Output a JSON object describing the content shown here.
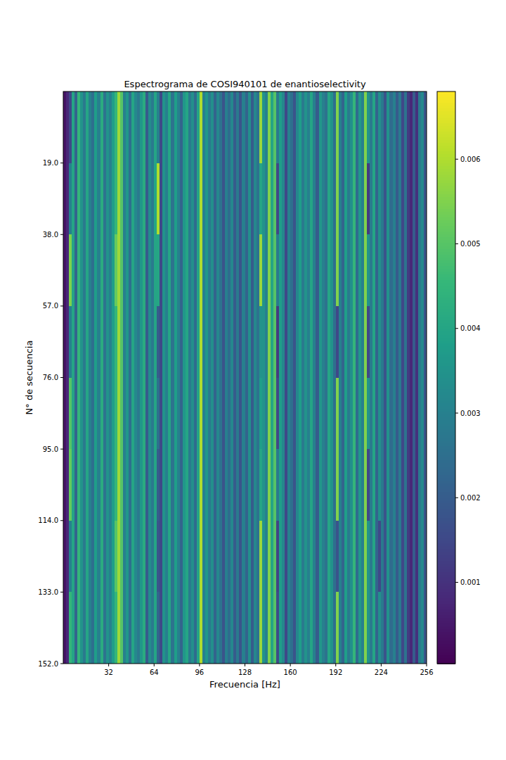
{
  "chart_data": {
    "type": "heatmap",
    "title": "Espectrograma de COSI940101 de enantioselectivity",
    "x_label": "Frecuencia [Hz]",
    "y_label": "N° de secuencia",
    "xlim": [
      0,
      256
    ],
    "ylim": [
      0,
      152
    ],
    "xticks": [
      32,
      64,
      96,
      128,
      160,
      192,
      224,
      256
    ],
    "yticks": [
      {
        "value": 19,
        "label": "19.0"
      },
      {
        "value": 38,
        "label": "38.0"
      },
      {
        "value": 57,
        "label": "57.0"
      },
      {
        "value": 76,
        "label": "76.0"
      },
      {
        "value": 95,
        "label": "95.0"
      },
      {
        "value": 114,
        "label": "114.0"
      },
      {
        "value": 133,
        "label": "133.0"
      },
      {
        "value": 152,
        "label": "152.0"
      }
    ],
    "colorbar": {
      "range": [
        4e-05,
        0.0068
      ],
      "ticks": [
        0.001,
        0.002,
        0.003,
        0.004,
        0.005,
        0.006
      ]
    },
    "cells": [
      [
        0.0004,
        0.0008,
        0.0015,
        0.004,
        0.0022,
        0.0045,
        0.0035,
        0.0028,
        0.004,
        0.003,
        0.0025,
        0.0038,
        0.003,
        0.0042,
        0.0026,
        0.0035,
        0.003,
        0.0038,
        0.0045,
        0.0058,
        0.005,
        0.003,
        0.0036,
        0.0025,
        0.004,
        0.0032,
        0.0028,
        0.0036,
        0.0042,
        0.002,
        0.0033,
        0.0028,
        0.004,
        0.003,
        0.0015,
        0.0035,
        0.003,
        0.004,
        0.0026,
        0.0038,
        0.003,
        0.0022,
        0.0036,
        0.004,
        0.0028,
        0.0034,
        0.0024,
        0.004,
        0.006,
        0.003,
        0.0036,
        0.0028,
        0.0034,
        0.0022,
        0.0032,
        0.0026,
        0.0018,
        0.003,
        0.0024,
        0.0032,
        0.002,
        0.0028,
        0.0018,
        0.003,
        0.0022,
        0.0034,
        0.002,
        0.0032,
        0.0026,
        0.0058,
        0.0035,
        0.003,
        0.0055,
        0.004,
        0.005,
        0.0028,
        0.0038,
        0.0032,
        0.0015,
        0.003,
        0.0025,
        0.0018,
        0.0032,
        0.0038,
        0.0028,
        0.0035,
        0.003,
        0.004,
        0.003,
        0.002,
        0.0036,
        0.003,
        0.0026,
        0.004,
        0.0035,
        0.0025,
        0.0055,
        0.003,
        0.0022,
        0.0038,
        0.0028,
        0.0034,
        0.0045,
        0.0024,
        0.0036,
        0.003,
        0.0055,
        0.0035,
        0.0028,
        0.004,
        0.0022,
        0.0034,
        0.0028,
        0.0018,
        0.0035,
        0.0024,
        0.003,
        0.002,
        0.0028,
        0.0015,
        0.0026,
        0.0012,
        0.0008,
        0.002,
        0.001,
        0.0028,
        0.0032,
        0.0018
      ],
      [
        0.0004,
        0.0008,
        0.003,
        0.004,
        0.0022,
        0.0045,
        0.0035,
        0.0028,
        0.004,
        0.003,
        0.0025,
        0.0038,
        0.003,
        0.0042,
        0.0026,
        0.0035,
        0.003,
        0.0038,
        0.0045,
        0.0058,
        0.005,
        0.003,
        0.0036,
        0.0025,
        0.004,
        0.0032,
        0.0028,
        0.0036,
        0.0042,
        0.002,
        0.0033,
        0.0028,
        0.004,
        0.006,
        0.0015,
        0.0035,
        0.003,
        0.004,
        0.0026,
        0.0038,
        0.003,
        0.0022,
        0.0036,
        0.004,
        0.0028,
        0.0034,
        0.0024,
        0.004,
        0.006,
        0.003,
        0.0036,
        0.0028,
        0.0034,
        0.0022,
        0.0032,
        0.0026,
        0.0018,
        0.003,
        0.0024,
        0.0032,
        0.002,
        0.0028,
        0.0018,
        0.003,
        0.0022,
        0.0034,
        0.002,
        0.0032,
        0.0026,
        0.004,
        0.0035,
        0.003,
        0.0055,
        0.004,
        0.005,
        0.0015,
        0.0038,
        0.0032,
        0.0015,
        0.003,
        0.0025,
        0.0018,
        0.0032,
        0.0038,
        0.0028,
        0.0035,
        0.003,
        0.004,
        0.003,
        0.002,
        0.0036,
        0.003,
        0.0026,
        0.004,
        0.0035,
        0.0025,
        0.0055,
        0.003,
        0.0022,
        0.0038,
        0.0028,
        0.0034,
        0.0045,
        0.0024,
        0.0036,
        0.003,
        0.0055,
        0.0012,
        0.0028,
        0.004,
        0.0022,
        0.0034,
        0.0028,
        0.0018,
        0.0035,
        0.0024,
        0.003,
        0.002,
        0.0028,
        0.0015,
        0.0026,
        0.0012,
        0.0008,
        0.002,
        0.001,
        0.0028,
        0.0032,
        0.0018
      ],
      [
        0.0004,
        0.0008,
        0.0055,
        0.004,
        0.0022,
        0.0045,
        0.0035,
        0.0028,
        0.004,
        0.003,
        0.0025,
        0.0038,
        0.003,
        0.0042,
        0.0026,
        0.0035,
        0.003,
        0.0038,
        0.0052,
        0.0058,
        0.005,
        0.003,
        0.0036,
        0.0025,
        0.004,
        0.0032,
        0.0028,
        0.0036,
        0.0042,
        0.002,
        0.0033,
        0.0028,
        0.004,
        0.004,
        0.0015,
        0.0035,
        0.003,
        0.004,
        0.0026,
        0.0038,
        0.003,
        0.0022,
        0.0036,
        0.004,
        0.0028,
        0.0034,
        0.0024,
        0.004,
        0.006,
        0.003,
        0.0036,
        0.0028,
        0.0034,
        0.0022,
        0.0032,
        0.0026,
        0.0018,
        0.003,
        0.0024,
        0.0032,
        0.002,
        0.0028,
        0.0018,
        0.003,
        0.0022,
        0.0034,
        0.002,
        0.0032,
        0.0026,
        0.0058,
        0.0035,
        0.003,
        0.0055,
        0.004,
        0.005,
        0.0028,
        0.0038,
        0.0032,
        0.0015,
        0.003,
        0.0025,
        0.0018,
        0.0032,
        0.0038,
        0.0028,
        0.0035,
        0.003,
        0.004,
        0.003,
        0.002,
        0.0036,
        0.003,
        0.0026,
        0.004,
        0.0035,
        0.0025,
        0.0055,
        0.003,
        0.0022,
        0.0038,
        0.0028,
        0.0034,
        0.0045,
        0.0024,
        0.0036,
        0.003,
        0.0055,
        0.0035,
        0.0028,
        0.004,
        0.0022,
        0.0034,
        0.0028,
        0.0018,
        0.0035,
        0.0024,
        0.003,
        0.002,
        0.0028,
        0.0015,
        0.0026,
        0.0012,
        0.0008,
        0.002,
        0.001,
        0.0028,
        0.0032,
        0.0018
      ],
      [
        0.0004,
        0.0008,
        0.003,
        0.004,
        0.0022,
        0.0045,
        0.0035,
        0.0028,
        0.004,
        0.003,
        0.0025,
        0.0038,
        0.003,
        0.0042,
        0.0026,
        0.0035,
        0.003,
        0.0038,
        0.0045,
        0.0058,
        0.005,
        0.003,
        0.0036,
        0.0025,
        0.004,
        0.0032,
        0.0028,
        0.0036,
        0.0042,
        0.002,
        0.0033,
        0.0028,
        0.004,
        0.002,
        0.0015,
        0.0035,
        0.003,
        0.004,
        0.0026,
        0.0038,
        0.003,
        0.0022,
        0.0036,
        0.004,
        0.0028,
        0.0034,
        0.0024,
        0.004,
        0.006,
        0.003,
        0.0036,
        0.0028,
        0.0034,
        0.0022,
        0.0032,
        0.0026,
        0.0018,
        0.003,
        0.0024,
        0.0032,
        0.002,
        0.0028,
        0.0018,
        0.003,
        0.0022,
        0.0034,
        0.002,
        0.0032,
        0.0026,
        0.0035,
        0.0035,
        0.003,
        0.0055,
        0.004,
        0.005,
        0.0012,
        0.0038,
        0.0032,
        0.0015,
        0.003,
        0.0025,
        0.0018,
        0.0032,
        0.0038,
        0.0028,
        0.0035,
        0.003,
        0.004,
        0.003,
        0.002,
        0.0036,
        0.003,
        0.0026,
        0.004,
        0.0035,
        0.0025,
        0.0015,
        0.003,
        0.0022,
        0.0038,
        0.0028,
        0.0034,
        0.0045,
        0.0024,
        0.0036,
        0.003,
        0.0055,
        0.0015,
        0.0028,
        0.004,
        0.0022,
        0.0034,
        0.0028,
        0.0018,
        0.0035,
        0.0024,
        0.003,
        0.002,
        0.0028,
        0.0015,
        0.0026,
        0.0012,
        0.0008,
        0.002,
        0.001,
        0.0028,
        0.0032,
        0.0018
      ],
      [
        0.0004,
        0.0008,
        0.005,
        0.004,
        0.0022,
        0.0045,
        0.0035,
        0.0028,
        0.004,
        0.003,
        0.0025,
        0.0038,
        0.003,
        0.0042,
        0.0026,
        0.0035,
        0.003,
        0.0038,
        0.0045,
        0.0058,
        0.005,
        0.003,
        0.0036,
        0.0025,
        0.004,
        0.0032,
        0.0028,
        0.0036,
        0.0042,
        0.002,
        0.0033,
        0.0028,
        0.004,
        0.0025,
        0.0015,
        0.0035,
        0.003,
        0.004,
        0.0026,
        0.0038,
        0.003,
        0.0022,
        0.0036,
        0.004,
        0.0028,
        0.0034,
        0.0024,
        0.004,
        0.006,
        0.003,
        0.0036,
        0.0028,
        0.0034,
        0.0022,
        0.0032,
        0.0026,
        0.0018,
        0.003,
        0.0024,
        0.0032,
        0.002,
        0.0028,
        0.0018,
        0.003,
        0.0022,
        0.0034,
        0.002,
        0.0032,
        0.0026,
        0.0038,
        0.0035,
        0.003,
        0.0055,
        0.004,
        0.005,
        0.0015,
        0.0038,
        0.0032,
        0.0015,
        0.003,
        0.0025,
        0.0018,
        0.0032,
        0.0038,
        0.0028,
        0.0035,
        0.003,
        0.004,
        0.003,
        0.002,
        0.0036,
        0.003,
        0.0026,
        0.004,
        0.0035,
        0.0025,
        0.0055,
        0.003,
        0.0022,
        0.0038,
        0.0028,
        0.0034,
        0.0045,
        0.0024,
        0.0036,
        0.003,
        0.0055,
        0.0035,
        0.0028,
        0.004,
        0.0022,
        0.0034,
        0.0028,
        0.0018,
        0.0035,
        0.0024,
        0.003,
        0.002,
        0.0028,
        0.0015,
        0.0026,
        0.0012,
        0.0008,
        0.002,
        0.001,
        0.0028,
        0.0032,
        0.0018
      ],
      [
        0.0004,
        0.0008,
        0.0052,
        0.004,
        0.0022,
        0.0045,
        0.0035,
        0.0028,
        0.004,
        0.003,
        0.0025,
        0.0038,
        0.003,
        0.0042,
        0.0026,
        0.0035,
        0.003,
        0.0038,
        0.0045,
        0.0058,
        0.005,
        0.003,
        0.0036,
        0.0025,
        0.004,
        0.0032,
        0.0028,
        0.0036,
        0.0042,
        0.002,
        0.0033,
        0.0028,
        0.004,
        0.002,
        0.0015,
        0.0035,
        0.003,
        0.004,
        0.0026,
        0.0038,
        0.003,
        0.0022,
        0.0036,
        0.004,
        0.0028,
        0.0034,
        0.0024,
        0.004,
        0.006,
        0.003,
        0.0036,
        0.0028,
        0.0034,
        0.0022,
        0.0032,
        0.0026,
        0.0018,
        0.003,
        0.0024,
        0.0032,
        0.002,
        0.0028,
        0.0018,
        0.003,
        0.0022,
        0.0034,
        0.002,
        0.0032,
        0.0026,
        0.004,
        0.0035,
        0.003,
        0.0055,
        0.004,
        0.005,
        0.0028,
        0.0038,
        0.0032,
        0.0015,
        0.003,
        0.0025,
        0.0018,
        0.0032,
        0.0038,
        0.0028,
        0.0035,
        0.003,
        0.004,
        0.003,
        0.002,
        0.0036,
        0.003,
        0.0026,
        0.004,
        0.0035,
        0.0025,
        0.0055,
        0.003,
        0.0022,
        0.0038,
        0.0028,
        0.0034,
        0.0045,
        0.0024,
        0.0036,
        0.003,
        0.0055,
        0.0015,
        0.0028,
        0.004,
        0.0022,
        0.0034,
        0.0028,
        0.0018,
        0.0035,
        0.0024,
        0.003,
        0.002,
        0.0028,
        0.0015,
        0.0026,
        0.0012,
        0.0008,
        0.002,
        0.001,
        0.0028,
        0.0032,
        0.0018
      ],
      [
        0.0004,
        0.0008,
        0.003,
        0.004,
        0.0022,
        0.0045,
        0.0035,
        0.0028,
        0.004,
        0.003,
        0.0025,
        0.0038,
        0.003,
        0.0042,
        0.0026,
        0.0035,
        0.003,
        0.0038,
        0.005,
        0.0058,
        0.005,
        0.003,
        0.0036,
        0.0025,
        0.004,
        0.0032,
        0.0028,
        0.0036,
        0.0042,
        0.002,
        0.0033,
        0.0028,
        0.004,
        0.0018,
        0.0015,
        0.0035,
        0.003,
        0.004,
        0.0026,
        0.0038,
        0.003,
        0.0022,
        0.0036,
        0.004,
        0.0028,
        0.0034,
        0.0024,
        0.004,
        0.006,
        0.003,
        0.0036,
        0.0028,
        0.0034,
        0.0022,
        0.0032,
        0.0026,
        0.0018,
        0.003,
        0.0024,
        0.0032,
        0.002,
        0.0028,
        0.0018,
        0.003,
        0.0022,
        0.0034,
        0.002,
        0.0032,
        0.0026,
        0.0058,
        0.0035,
        0.003,
        0.0055,
        0.004,
        0.005,
        0.0014,
        0.0038,
        0.0032,
        0.0015,
        0.003,
        0.0025,
        0.0018,
        0.0032,
        0.0038,
        0.0028,
        0.0035,
        0.003,
        0.004,
        0.003,
        0.002,
        0.0036,
        0.003,
        0.0026,
        0.004,
        0.0035,
        0.0025,
        0.0018,
        0.003,
        0.0022,
        0.0038,
        0.0028,
        0.0034,
        0.0045,
        0.0024,
        0.0036,
        0.003,
        0.0055,
        0.0035,
        0.0028,
        0.004,
        0.0022,
        0.0015,
        0.0028,
        0.0018,
        0.0035,
        0.0024,
        0.003,
        0.002,
        0.0028,
        0.0015,
        0.0026,
        0.0012,
        0.0008,
        0.002,
        0.001,
        0.0028,
        0.0032,
        0.0018
      ],
      [
        0.0004,
        0.0008,
        0.0045,
        0.004,
        0.0022,
        0.0045,
        0.0035,
        0.0028,
        0.004,
        0.003,
        0.0025,
        0.0038,
        0.003,
        0.0042,
        0.0026,
        0.0035,
        0.003,
        0.0038,
        0.0045,
        0.0058,
        0.005,
        0.003,
        0.0036,
        0.0025,
        0.004,
        0.0032,
        0.0028,
        0.0036,
        0.0042,
        0.002,
        0.0033,
        0.0028,
        0.004,
        0.0022,
        0.0015,
        0.0035,
        0.003,
        0.004,
        0.0026,
        0.0038,
        0.003,
        0.0022,
        0.0036,
        0.004,
        0.0028,
        0.0034,
        0.0024,
        0.004,
        0.006,
        0.003,
        0.0036,
        0.0028,
        0.0034,
        0.0022,
        0.0032,
        0.0026,
        0.0018,
        0.003,
        0.0024,
        0.0032,
        0.002,
        0.0028,
        0.0018,
        0.003,
        0.0022,
        0.0034,
        0.002,
        0.0032,
        0.0026,
        0.0058,
        0.0035,
        0.003,
        0.0055,
        0.004,
        0.005,
        0.0016,
        0.0038,
        0.0032,
        0.0015,
        0.003,
        0.0025,
        0.0018,
        0.0032,
        0.0038,
        0.0028,
        0.0035,
        0.003,
        0.004,
        0.003,
        0.002,
        0.0036,
        0.003,
        0.0026,
        0.004,
        0.0035,
        0.0025,
        0.0055,
        0.003,
        0.0022,
        0.0038,
        0.0028,
        0.0034,
        0.0045,
        0.0024,
        0.0036,
        0.003,
        0.0055,
        0.0035,
        0.0028,
        0.004,
        0.0022,
        0.0034,
        0.0028,
        0.0018,
        0.0035,
        0.0024,
        0.003,
        0.002,
        0.0028,
        0.0015,
        0.0026,
        0.0012,
        0.0008,
        0.002,
        0.001,
        0.0028,
        0.0032,
        0.0018
      ]
    ]
  }
}
